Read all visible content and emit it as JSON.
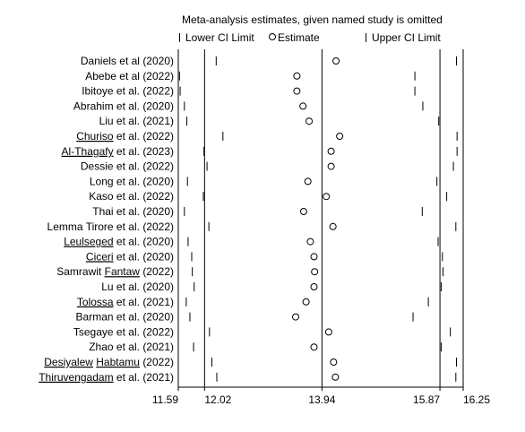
{
  "chart_data": {
    "type": "scatter",
    "title": "Meta-analysis estimates, given named study is omitted",
    "legend": [
      {
        "label": "Lower CI Limit",
        "marker": "bar"
      },
      {
        "label": "Estimate",
        "marker": "circle"
      },
      {
        "label": "Upper CI Limit",
        "marker": "bar"
      }
    ],
    "legend_position": "top",
    "x_ticks": [
      {
        "label": "11.59",
        "value": 11.59
      },
      {
        "label": "12.02",
        "value": 12.02
      },
      {
        "label": "13.94",
        "value": 13.94
      },
      {
        "label": "15.87",
        "value": 15.87
      },
      {
        "label": "16.25",
        "value": 16.25
      }
    ],
    "xlim": [
      11.59,
      16.25
    ],
    "reference_lines": [
      12.02,
      13.94,
      15.87
    ],
    "studies": [
      {
        "name": "Daniels et al (2020)",
        "lower": 12.21,
        "estimate": 14.17,
        "upper": 16.14
      },
      {
        "name": "Abebe et al (2022)",
        "lower": 11.61,
        "estimate": 13.53,
        "upper": 15.46
      },
      {
        "name": "Ibitoye et al. (2022)",
        "lower": 11.62,
        "estimate": 13.53,
        "upper": 15.46
      },
      {
        "name": "Abrahim et al. (2020)",
        "lower": 11.69,
        "estimate": 13.63,
        "upper": 15.59
      },
      {
        "name": "Liu et al. (2021)",
        "lower": 11.73,
        "estimate": 13.73,
        "upper": 15.85
      },
      {
        "name": "Churiso et al. (2022)",
        "lower": 12.32,
        "estimate": 14.23,
        "upper": 16.15
      },
      {
        "name": "Al-Thagafy et al. (2023)",
        "lower": 12.01,
        "estimate": 14.09,
        "upper": 16.15
      },
      {
        "name": "Dessie et al. (2022)",
        "lower": 12.06,
        "estimate": 14.09,
        "upper": 16.09
      },
      {
        "name": "Long et al. (2020)",
        "lower": 11.74,
        "estimate": 13.71,
        "upper": 15.82
      },
      {
        "name": "Kaso et al. (2022)",
        "lower": 12.0,
        "estimate": 14.01,
        "upper": 15.98
      },
      {
        "name": "Thai et al. (2020)",
        "lower": 11.69,
        "estimate": 13.64,
        "upper": 15.58
      },
      {
        "name": "Lemma Tirore et al. (2022)",
        "lower": 12.09,
        "estimate": 14.12,
        "upper": 16.13
      },
      {
        "name": "Leulseged et al. (2020)",
        "lower": 11.75,
        "estimate": 13.75,
        "upper": 15.84
      },
      {
        "name": "Ciceri et al. (2020)",
        "lower": 11.81,
        "estimate": 13.81,
        "upper": 15.91
      },
      {
        "name": "Samrawit Fantaw (2022)",
        "lower": 11.82,
        "estimate": 13.82,
        "upper": 15.92
      },
      {
        "name": "Lu et al. (2020)",
        "lower": 11.85,
        "estimate": 13.81,
        "upper": 15.89
      },
      {
        "name": "Tolossa et al. (2021)",
        "lower": 11.72,
        "estimate": 13.68,
        "upper": 15.68
      },
      {
        "name": "Barman et al. (2020)",
        "lower": 11.78,
        "estimate": 13.51,
        "upper": 15.43
      },
      {
        "name": "Tsegaye et al. (2022)",
        "lower": 12.1,
        "estimate": 14.05,
        "upper": 16.04
      },
      {
        "name": "Zhao et al. (2021)",
        "lower": 11.84,
        "estimate": 13.81,
        "upper": 15.89
      },
      {
        "name": "Desiyalew Habtamu (2022)",
        "lower": 12.14,
        "estimate": 14.13,
        "upper": 16.14
      },
      {
        "name": "Thiruvengadam et al. (2021)",
        "lower": 12.22,
        "estimate": 14.16,
        "upper": 16.13
      }
    ]
  }
}
